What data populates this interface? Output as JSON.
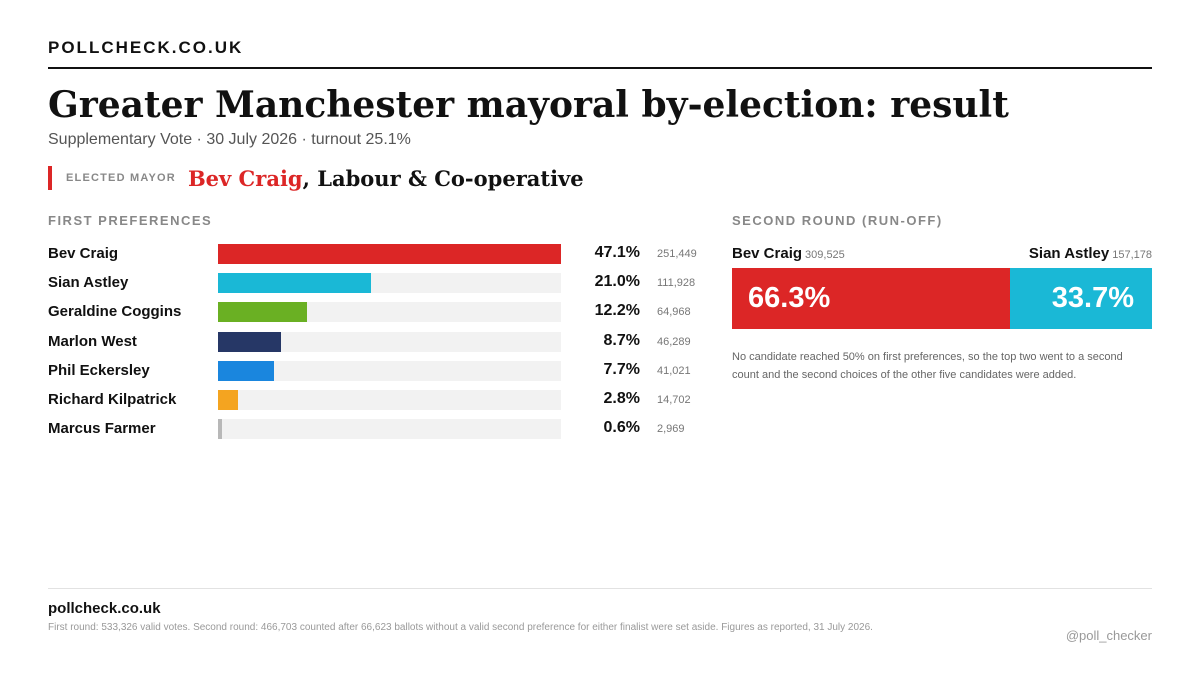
{
  "brand": "POLLCHECK.CO.UK",
  "title": "Greater Manchester mayoral by-election: result",
  "subtitle": "Supplementary Vote · 30 July 2026 · turnout 25.1%",
  "elected": {
    "kicker": "ELECTED MAYOR",
    "name": "Bev Craig",
    "party": ", Labour & Co-operative",
    "color": "#dc2626"
  },
  "first_prefs_heading": "FIRST PREFERENCES",
  "runoff_heading": "SECOND ROUND (RUN-OFF)",
  "runoff_note": "No candidate reached 50% on first preferences, so the top two went to a second count and the second choices of the other five candidates were added.",
  "footer": {
    "site": "pollcheck.co.uk",
    "note": "First round: 533,326 valid votes. Second round: 466,703 counted after 66,623 ballots without a valid second preference for either finalist were set aside. Figures as reported, 31 July 2026.",
    "handle": "@poll_checker"
  },
  "chart_data": [
    {
      "type": "bar",
      "orientation": "horizontal",
      "title": "FIRST PREFERENCES",
      "categories": [
        "Bev Craig",
        "Sian Astley",
        "Geraldine Coggins",
        "Marlon West",
        "Phil Eckersley",
        "Richard Kilpatrick",
        "Marcus Farmer"
      ],
      "values": [
        47.1,
        21.0,
        12.2,
        8.7,
        7.7,
        2.8,
        0.6
      ],
      "value_labels": [
        "47.1%",
        "21.0%",
        "12.2%",
        "8.7%",
        "7.7%",
        "2.8%",
        "0.6%"
      ],
      "votes": [
        "251,449",
        "111,928",
        "64,968",
        "46,289",
        "41,021",
        "14,702",
        "2,969"
      ],
      "colors": [
        "#dc2626",
        "#1ab8d6",
        "#6ab023",
        "#263766",
        "#1a86de",
        "#f4a420",
        "#b8b8b8"
      ],
      "xlim": [
        0,
        47.1
      ]
    },
    {
      "type": "bar",
      "orientation": "stacked-horizontal",
      "title": "SECOND ROUND (RUN-OFF)",
      "categories": [
        "Bev Craig",
        "Sian Astley"
      ],
      "values": [
        66.3,
        33.7
      ],
      "value_labels": [
        "66.3%",
        "33.7%"
      ],
      "votes": [
        "309,525",
        "157,178"
      ],
      "colors": [
        "#dc2626",
        "#1ab8d6"
      ],
      "xlim": [
        0,
        100
      ]
    }
  ]
}
